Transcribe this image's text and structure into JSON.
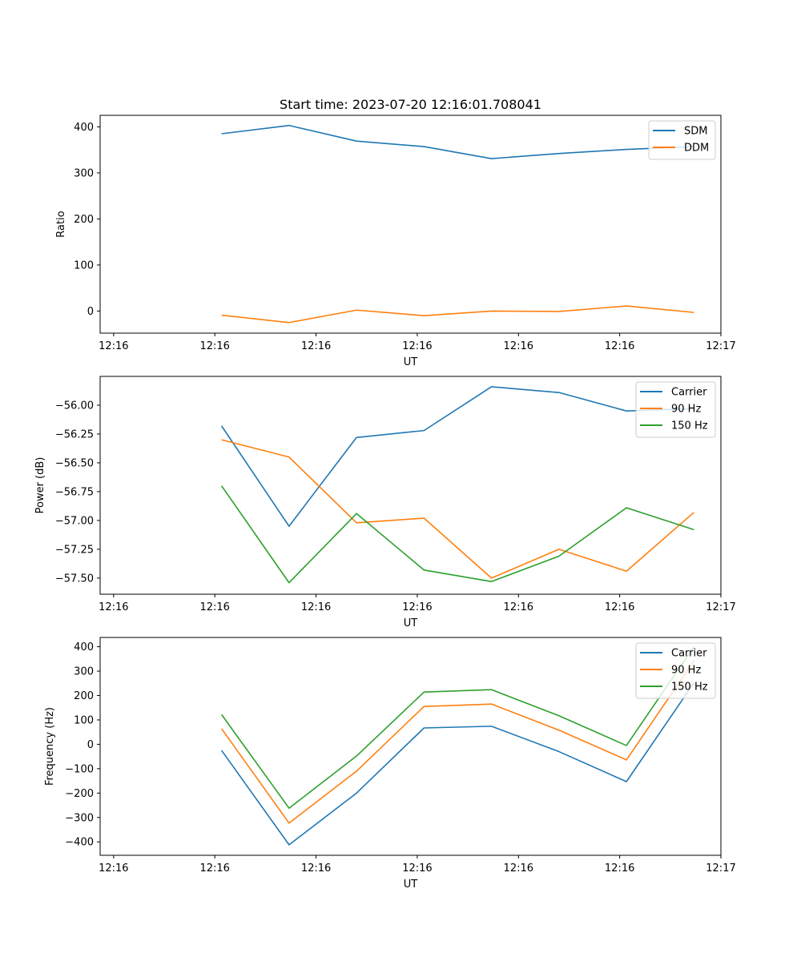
{
  "colors": {
    "blue": "#1f77b4",
    "orange": "#ff7f0e",
    "green": "#2ca02c"
  },
  "chart_data": [
    {
      "type": "line",
      "title": "Start time: 2023-07-20 12:16:01.708041",
      "xlabel": "UT",
      "ylabel": "Ratio",
      "x": [
        1,
        2,
        3,
        4,
        5,
        6,
        7,
        8
      ],
      "xlim": [
        -0.8,
        8.4
      ],
      "x_ticks": [
        -0.6,
        0.9,
        2.4,
        3.9,
        5.4,
        6.9,
        8.4
      ],
      "x_tick_labels": [
        "12:16",
        "12:16",
        "12:16",
        "12:16",
        "12:16",
        "12:16",
        "12:17"
      ],
      "ylim": [
        -48,
        425
      ],
      "y_ticks": [
        0,
        100,
        200,
        300,
        400
      ],
      "y_tick_labels": [
        "0",
        "100",
        "200",
        "300",
        "400"
      ],
      "legend_position": "top-right",
      "series": [
        {
          "name": "SDM",
          "color": "#1f77b4",
          "values": [
            385,
            403,
            369,
            357,
            331,
            342,
            351,
            357
          ]
        },
        {
          "name": "DDM",
          "color": "#ff7f0e",
          "values": [
            -9,
            -25,
            2,
            -10,
            0,
            -1,
            11,
            -3
          ]
        }
      ]
    },
    {
      "type": "line",
      "title": "",
      "xlabel": "UT",
      "ylabel": "Power (dB)",
      "x": [
        1,
        2,
        3,
        4,
        5,
        6,
        7,
        8
      ],
      "xlim": [
        -0.8,
        8.4
      ],
      "x_ticks": [
        -0.6,
        0.9,
        2.4,
        3.9,
        5.4,
        6.9,
        8.4
      ],
      "x_tick_labels": [
        "12:16",
        "12:16",
        "12:16",
        "12:16",
        "12:16",
        "12:16",
        "12:17"
      ],
      "ylim": [
        -57.64,
        -55.75
      ],
      "y_ticks": [
        -57.5,
        -57.25,
        -57.0,
        -56.75,
        -56.5,
        -56.25,
        -56.0
      ],
      "y_tick_labels": [
        "−57.50",
        "−57.25",
        "−57.00",
        "−56.75",
        "−56.50",
        "−56.25",
        "−56.00"
      ],
      "legend_position": "top-right",
      "series": [
        {
          "name": "Carrier",
          "color": "#1f77b4",
          "values": [
            -56.18,
            -57.05,
            -56.28,
            -56.22,
            -55.84,
            -55.89,
            -56.05,
            -56.03
          ]
        },
        {
          "name": "90 Hz",
          "color": "#ff7f0e",
          "values": [
            -56.3,
            -56.45,
            -57.02,
            -56.98,
            -57.5,
            -57.25,
            -57.44,
            -56.93
          ]
        },
        {
          "name": "150 Hz",
          "color": "#2ca02c",
          "values": [
            -56.7,
            -57.54,
            -56.94,
            -57.43,
            -57.53,
            -57.31,
            -56.89,
            -57.08
          ]
        }
      ]
    },
    {
      "type": "line",
      "title": "",
      "xlabel": "UT",
      "ylabel": "Frequency (Hz)",
      "x": [
        1,
        2,
        3,
        4,
        5,
        6,
        7,
        8
      ],
      "xlim": [
        -0.8,
        8.4
      ],
      "x_ticks": [
        -0.6,
        0.9,
        2.4,
        3.9,
        5.4,
        6.9,
        8.4
      ],
      "x_tick_labels": [
        "12:16",
        "12:16",
        "12:16",
        "12:16",
        "12:16",
        "12:16",
        "12:17"
      ],
      "ylim": [
        -455,
        438
      ],
      "y_ticks": [
        -400,
        -300,
        -200,
        -100,
        0,
        100,
        200,
        300,
        400
      ],
      "y_tick_labels": [
        "−400",
        "−300",
        "−200",
        "−100",
        "0",
        "100",
        "200",
        "300",
        "400"
      ],
      "legend_position": "top-right",
      "series": [
        {
          "name": "Carrier",
          "color": "#1f77b4",
          "values": [
            -25,
            -412,
            -200,
            67,
            74,
            -30,
            -153,
            252
          ]
        },
        {
          "name": "90 Hz",
          "color": "#ff7f0e",
          "values": [
            64,
            -323,
            -110,
            155,
            165,
            58,
            -64,
            342
          ]
        },
        {
          "name": "150 Hz",
          "color": "#2ca02c",
          "values": [
            122,
            -262,
            -48,
            214,
            224,
            117,
            -5,
            400
          ]
        }
      ]
    }
  ]
}
